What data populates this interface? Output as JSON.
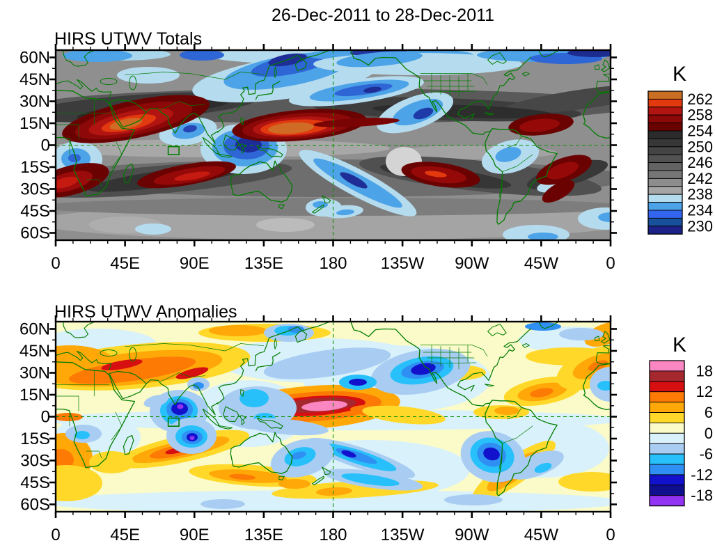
{
  "figure_title": "26-Dec-2011 to 28-Dec-2011",
  "panels": [
    {
      "title": "HIRS UTWV Totals",
      "xticks": [
        "0",
        "45E",
        "90E",
        "135E",
        "180",
        "135W",
        "90W",
        "45W",
        "0"
      ],
      "yticks": [
        "60N",
        "45N",
        "30N",
        "15N",
        "0",
        "15S",
        "30S",
        "45S",
        "60S"
      ],
      "colorbar": {
        "title": "K",
        "labels": [
          "262",
          "258",
          "254",
          "250",
          "246",
          "242",
          "238",
          "234",
          "230"
        ],
        "colors_top_to_bottom": [
          "#c96f24",
          "#e2390f",
          "#b11411",
          "#8d0808",
          "#6b0202",
          "#2b2b2b",
          "#373737",
          "#444444",
          "#525252",
          "#636363",
          "#767676",
          "#8d8d8d",
          "#a5a5a5",
          "#b5dcee",
          "#4da3e8",
          "#3366f0",
          "#17509b",
          "#1c2287"
        ]
      }
    },
    {
      "title": "HIRS UTWV Anomalies",
      "xticks": [
        "0",
        "45E",
        "90E",
        "135E",
        "180",
        "135W",
        "90W",
        "45W",
        "0"
      ],
      "yticks": [
        "60N",
        "45N",
        "30N",
        "15N",
        "0",
        "15S",
        "30S",
        "45S",
        "60S"
      ],
      "colorbar": {
        "title": "K",
        "labels": [
          "18",
          "12",
          "6",
          "0",
          "-6",
          "-12",
          "-18"
        ],
        "colors_top_to_bottom": [
          "#fa86c2",
          "#a5282f",
          "#d60f10",
          "#fd7a05",
          "#ffa808",
          "#ffd82a",
          "#fbfbc9",
          "#d9f1fa",
          "#a9cdf2",
          "#28c0fa",
          "#2f8ff2",
          "#1212cc",
          "#10108f",
          "#9232f2"
        ]
      }
    }
  ],
  "chart_data": [
    {
      "type": "heatmap",
      "subtype": "filled-contour global map, cylindrical 0-360E",
      "title": "HIRS UTWV Totals",
      "period": "26-Dec-2011 to 28-Dec-2011",
      "units": "K",
      "x_axis": {
        "ticks": [
          "0",
          "45E",
          "90E",
          "135E",
          "180",
          "135W",
          "90W",
          "45W",
          "0"
        ],
        "range_lon_east": [
          0,
          360
        ]
      },
      "y_axis": {
        "ticks": [
          "60N",
          "45N",
          "30N",
          "15N",
          "0",
          "15S",
          "30S",
          "45S",
          "60S"
        ],
        "range_lat": [
          -65,
          65
        ]
      },
      "colorbar_labeled_levels_K": [
        262,
        258,
        254,
        250,
        246,
        242,
        238,
        234,
        230
      ],
      "contour_interval_K": 2,
      "palette_high_to_low": [
        "#c96f24",
        "#e2390f",
        "#b11411",
        "#8d0808",
        "#6b0202",
        "#2b2b2b",
        "#373737",
        "#444444",
        "#525252",
        "#636363",
        "#767676",
        "#8d8d8d",
        "#a5a5a5",
        "#b5dcee",
        "#4da3e8",
        "#3366f0",
        "#17509b",
        "#1c2287"
      ],
      "overlays": [
        "green coastlines and borders",
        "green dashed equator line",
        "green dashed 180 meridian",
        "green lat-lon box near 75E 3S"
      ],
      "notable_features": [
        {
          "feature": "warm maximum >260K (dry)",
          "lon_e": 52,
          "lat": 15,
          "region": "Arabia / Arabian Sea"
        },
        {
          "feature": "warm maximum >260K (dry)",
          "lon_e": 158,
          "lat": 11,
          "region": "west-central tropical Pacific"
        },
        {
          "feature": "cold minimum <232K (moist)",
          "lon_e": 124,
          "lat": -2,
          "region": "Indonesia / Maritime Continent"
        },
        {
          "feature": "cold band <236K",
          "lon_e": 150,
          "lat": 55,
          "region": "NE Asia / Bering"
        },
        {
          "feature": "cold trough <234K",
          "lon_e": 233,
          "lat": 22,
          "region": "NE subtropical Pacific"
        },
        {
          "feature": "cold SPCZ band <234K",
          "lon_e": 196,
          "lat": -25,
          "region": "South Pacific"
        },
        {
          "feature": "warm band >256K",
          "lon_e": 85,
          "lat": -20,
          "region": "south Indian Ocean"
        },
        {
          "feature": "warm band >256K",
          "lon_e": 12,
          "lat": -24,
          "region": "SE Atlantic / SW Africa"
        },
        {
          "feature": "cold pocket <236K",
          "lon_e": 86,
          "lat": 8,
          "region": "south of India"
        }
      ]
    },
    {
      "type": "heatmap",
      "subtype": "filled-contour global map, cylindrical 0-360E",
      "title": "HIRS UTWV Anomalies",
      "period": "26-Dec-2011 to 28-Dec-2011",
      "units": "K",
      "x_axis": {
        "ticks": [
          "0",
          "45E",
          "90E",
          "135E",
          "180",
          "135W",
          "90W",
          "45W",
          "0"
        ],
        "range_lon_east": [
          0,
          360
        ]
      },
      "y_axis": {
        "ticks": [
          "60N",
          "45N",
          "30N",
          "15N",
          "0",
          "15S",
          "30S",
          "45S",
          "60S"
        ],
        "range_lat": [
          -65,
          65
        ]
      },
      "colorbar_labeled_levels_K": [
        18,
        12,
        6,
        0,
        -6,
        -12,
        -18
      ],
      "contour_interval_K": 3,
      "palette_high_to_low": [
        "#fa86c2",
        "#a5282f",
        "#d60f10",
        "#fd7a05",
        "#ffa808",
        "#ffd82a",
        "#fbfbc9",
        "#d9f1fa",
        "#a9cdf2",
        "#28c0fa",
        "#2f8ff2",
        "#1212cc",
        "#10108f",
        "#9232f2"
      ],
      "overlays": [
        "green coastlines and borders",
        "green dashed equator line",
        "green dashed 180 meridian",
        "green lat-lon box near 75E 3S"
      ],
      "notable_features": [
        {
          "feature": "positive anomaly >18K (pink core)",
          "lon_e": 170,
          "lat": 5,
          "region": "central equatorial Pacific"
        },
        {
          "feature": "positive band +6 to +12K",
          "lon_e": 45,
          "lat": 28,
          "region": "N Africa - Middle East - N India"
        },
        {
          "feature": "negative anomaly < -15K with purple dot",
          "lon_e": 80,
          "lat": 4,
          "region": "south of India"
        },
        {
          "feature": "negative anomaly < -15K with purple dot",
          "lon_e": 88,
          "lat": -13,
          "region": "central Indian Ocean"
        },
        {
          "feature": "negative anomaly < -12K",
          "lon_e": 237,
          "lat": 31,
          "region": "NE Pacific"
        },
        {
          "feature": "negative anomaly < -12K",
          "lon_e": 284,
          "lat": -27,
          "region": "Chile / SE Pacific"
        },
        {
          "feature": "positive streak +6 to +12K",
          "lon_e": 82,
          "lat": -22,
          "region": "south Indian Ocean"
        },
        {
          "feature": "positive anomaly +6 to +9K",
          "lon_e": 316,
          "lat": 17,
          "region": "tropical N Atlantic"
        },
        {
          "feature": "negative streaks -6 to -9K",
          "lon_e": 200,
          "lat": -30,
          "region": "South Pacific"
        }
      ]
    }
  ]
}
